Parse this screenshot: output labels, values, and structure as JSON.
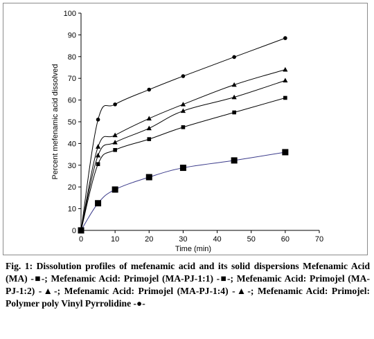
{
  "caption": {
    "label": "Fig. 1:",
    "text": "Dissolution profiles of mefenamic acid and its solid dispersions Mefenamic Acid (MA) -■-; Mefenamic Acid: Primojel (MA-PJ-1:1) -■-; Mefenamic Acid: Primojel (MA-PJ-1:2) -▲-; Mefenamic Acid: Primojel (MA-PJ-1:4) -▲-; Mefenamic Acid: Primojel: Polymer poly Vinyl Pyrrolidine -●-"
  },
  "chart_data": {
    "type": "line",
    "title": "",
    "xlabel": "Time (min)",
    "ylabel": "Percent mefenamic acid dissolved",
    "xlim": [
      0,
      70
    ],
    "ylim": [
      0,
      100
    ],
    "xticks": [
      0,
      10,
      20,
      30,
      40,
      50,
      60,
      70
    ],
    "yticks": [
      0,
      10,
      20,
      30,
      40,
      50,
      60,
      70,
      80,
      90,
      100
    ],
    "grid": false,
    "x": [
      0,
      5,
      10,
      20,
      30,
      45,
      60
    ],
    "series": [
      {
        "name": "Mefenamic Acid (MA)",
        "marker": "square-large",
        "color": "#3a3a8a",
        "values": [
          0,
          12.5,
          18.8,
          24.5,
          28.8,
          32.2,
          36
        ]
      },
      {
        "name": "Mefenamic Acid: Primojel (MA-PJ-1:1)",
        "marker": "square",
        "color": "#000000",
        "values": [
          0,
          30.5,
          37,
          42,
          47.5,
          54.3,
          61
        ]
      },
      {
        "name": "Mefenamic Acid: Primojel (MA-PJ-1:2)",
        "marker": "triangle",
        "color": "#000000",
        "values": [
          0,
          34.5,
          40.5,
          47,
          55,
          61.3,
          69
        ]
      },
      {
        "name": "Mefenamic Acid: Primojel (MA-PJ-1:4)",
        "marker": "triangle",
        "color": "#000000",
        "values": [
          0,
          38.5,
          43.8,
          51.5,
          58,
          67,
          74
        ]
      },
      {
        "name": "Mefenamic Acid: Primojel: Polymer poly Vinyl Pyrrolidine",
        "marker": "circle",
        "color": "#000000",
        "values": [
          0,
          51,
          58,
          64.8,
          71,
          79.8,
          88.5
        ]
      }
    ]
  }
}
